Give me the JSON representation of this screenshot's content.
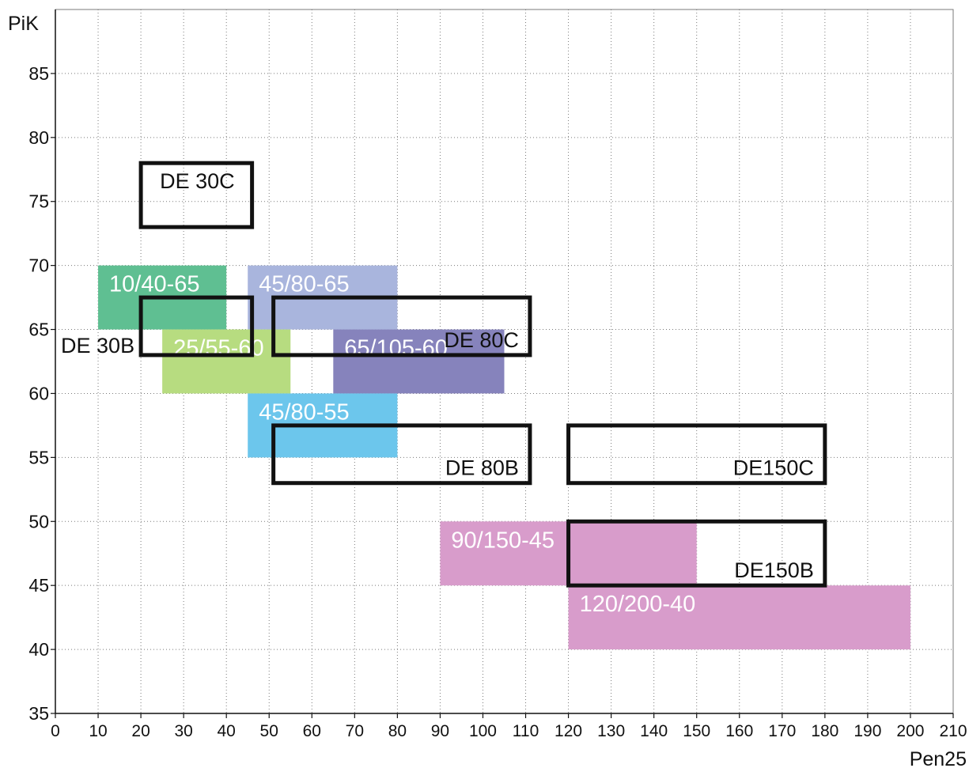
{
  "chart_data": {
    "type": "range-boxes",
    "xlabel": "Pen25",
    "ylabel": "PiK",
    "xlim": [
      0,
      210
    ],
    "ylim": [
      35,
      90
    ],
    "xticks": [
      0,
      10,
      20,
      30,
      40,
      50,
      60,
      70,
      80,
      90,
      100,
      110,
      120,
      130,
      140,
      150,
      160,
      170,
      180,
      190,
      200,
      210
    ],
    "yticks": [
      35,
      40,
      45,
      50,
      55,
      60,
      65,
      70,
      75,
      80,
      85
    ],
    "grid": true,
    "filled_ranges": [
      {
        "label": "10/40-65",
        "x": [
          10,
          40
        ],
        "y": [
          65,
          70
        ],
        "color": "#5fbf92",
        "label_color": "#ffffff"
      },
      {
        "label": "45/80-65",
        "x": [
          45,
          80
        ],
        "y": [
          65,
          70
        ],
        "color": "#a9b5dd",
        "label_color": "#ffffff"
      },
      {
        "label": "25/55-60",
        "x": [
          25,
          55
        ],
        "y": [
          60,
          65
        ],
        "color": "#b7dc80",
        "label_color": "#ffffff"
      },
      {
        "label": "65/105-60",
        "x": [
          65,
          105
        ],
        "y": [
          60,
          65
        ],
        "color": "#8683bc",
        "label_color": "#ffffff"
      },
      {
        "label": "45/80-55",
        "x": [
          45,
          80
        ],
        "y": [
          55,
          60
        ],
        "color": "#6cc6ec",
        "label_color": "#ffffff"
      },
      {
        "label": "90/150-45",
        "x": [
          90,
          150
        ],
        "y": [
          45,
          50
        ],
        "color": "#d89ccb",
        "label_color": "#ffffff"
      },
      {
        "label": "120/200-40",
        "x": [
          120,
          200
        ],
        "y": [
          40,
          45
        ],
        "color": "#d89ccb",
        "label_color": "#ffffff"
      }
    ],
    "outlined_ranges": [
      {
        "label": "DE 30C",
        "x": [
          20,
          46
        ],
        "y": [
          73,
          78
        ]
      },
      {
        "label": "DE 30B",
        "x": [
          20,
          46
        ],
        "y": [
          63,
          67.5
        ]
      },
      {
        "label": "DE 80C",
        "x": [
          51,
          111
        ],
        "y": [
          63,
          67.5
        ]
      },
      {
        "label": "DE 80B",
        "x": [
          51,
          111
        ],
        "y": [
          53,
          57.5
        ]
      },
      {
        "label": "DE150C",
        "x": [
          120,
          180
        ],
        "y": [
          53,
          57.5
        ]
      },
      {
        "label": "DE150B",
        "x": [
          120,
          180
        ],
        "y": [
          45,
          50
        ]
      }
    ],
    "outline_color": "#111111"
  }
}
